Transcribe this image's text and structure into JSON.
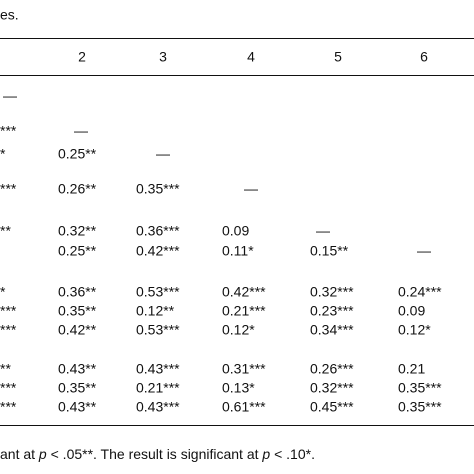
{
  "caption": "es.",
  "table": {
    "header": [
      "2",
      "3",
      "4",
      "5",
      "6"
    ],
    "rows": [
      [
        "—",
        null,
        null,
        null,
        null,
        null
      ],
      [
        "***",
        "—",
        null,
        null,
        null,
        null
      ],
      [
        "*",
        "0.25**",
        "—",
        null,
        null,
        null
      ],
      [
        "***",
        "0.26**",
        "0.35***",
        "—",
        null,
        null
      ],
      [
        "**",
        "0.32**",
        "0.36***",
        "0.09",
        "—",
        null
      ],
      [
        null,
        "0.25**",
        "0.42***",
        "0.11*",
        "0.15**",
        "—"
      ],
      [
        "*",
        "0.36**",
        "0.53***",
        "0.42***",
        "0.32***",
        "0.24***"
      ],
      [
        "***",
        "0.35**",
        "0.12**",
        "0.21***",
        "0.23***",
        "0.09"
      ],
      [
        "***",
        "0.42**",
        "0.53***",
        "0.12*",
        "0.34***",
        "0.12*"
      ],
      [
        "**",
        "0.43**",
        "0.43***",
        "0.31***",
        "0.26***",
        "0.21"
      ],
      [
        "***",
        "0.35**",
        "0.21***",
        "0.13*",
        "0.32***",
        "0.35***"
      ],
      [
        "***",
        "0.43**",
        "0.43***",
        "0.61***",
        "0.45***",
        "0.35***"
      ]
    ]
  },
  "footnote": [
    "ant at ",
    "p",
    " < .05**. The result is significant at ",
    "p",
    " < .10*."
  ]
}
